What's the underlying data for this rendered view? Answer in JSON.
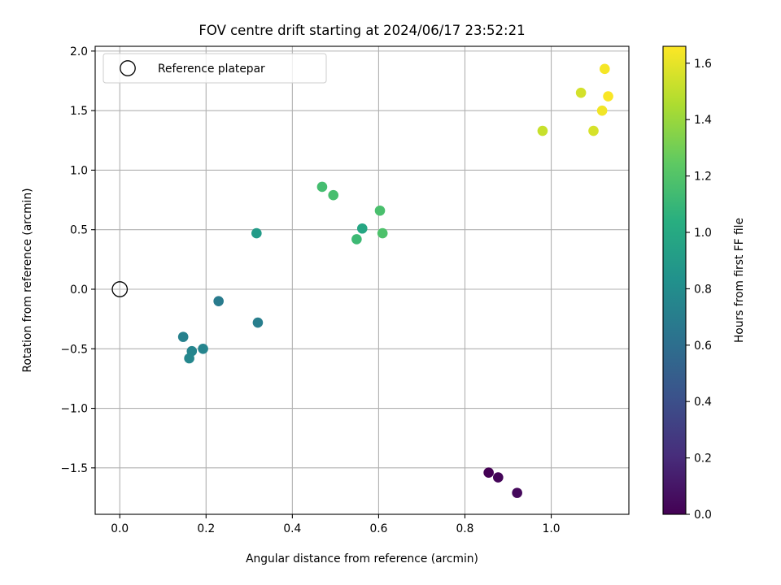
{
  "chart_data": {
    "type": "scatter",
    "title": "FOV centre drift starting at 2024/06/17 23:52:21",
    "xlabel": "Angular distance from reference (arcmin)",
    "ylabel": "Rotation from reference (arcmin)",
    "xlim": [
      -0.057,
      1.18
    ],
    "ylim": [
      -1.89,
      2.04
    ],
    "xticks": [
      0.0,
      0.2,
      0.4,
      0.6,
      0.8,
      1.0
    ],
    "xtick_labels": [
      "0.0",
      "0.2",
      "0.4",
      "0.6",
      "0.8",
      "1.0"
    ],
    "yticks": [
      -1.5,
      -1.0,
      -0.5,
      0.0,
      0.5,
      1.0,
      1.5,
      2.0
    ],
    "ytick_labels": [
      "−1.5",
      "−1.0",
      "−0.5",
      "0.0",
      "0.5",
      "1.0",
      "1.5",
      "2.0"
    ],
    "grid": true,
    "legend": {
      "position": "top-left",
      "entries": [
        "Reference platepar"
      ]
    },
    "reference_point": {
      "x": 0.0,
      "y": 0.0,
      "label": "Reference platepar"
    },
    "colorbar": {
      "label": "Hours from first FF file",
      "colormap": "viridis",
      "range": [
        0.0,
        1.66
      ],
      "ticks": [
        0.0,
        0.2,
        0.4,
        0.6,
        0.8,
        1.0,
        1.2,
        1.4,
        1.6
      ],
      "tick_labels": [
        "0.0",
        "0.2",
        "0.4",
        "0.6",
        "0.8",
        "1.0",
        "1.2",
        "1.4",
        "1.6"
      ]
    },
    "points": [
      {
        "x": 0.855,
        "y": -1.54,
        "hours": 0.0
      },
      {
        "x": 0.877,
        "y": -1.58,
        "hours": 0.02
      },
      {
        "x": 0.921,
        "y": -1.71,
        "hours": 0.04
      },
      {
        "x": 0.229,
        "y": -0.1,
        "hours": 0.68
      },
      {
        "x": 0.32,
        "y": -0.28,
        "hours": 0.7
      },
      {
        "x": 0.147,
        "y": -0.4,
        "hours": 0.72
      },
      {
        "x": 0.193,
        "y": -0.5,
        "hours": 0.74
      },
      {
        "x": 0.167,
        "y": -0.52,
        "hours": 0.75
      },
      {
        "x": 0.161,
        "y": -0.58,
        "hours": 0.76
      },
      {
        "x": 0.317,
        "y": 0.47,
        "hours": 0.9
      },
      {
        "x": 0.562,
        "y": 0.51,
        "hours": 0.98
      },
      {
        "x": 0.549,
        "y": 0.42,
        "hours": 1.12
      },
      {
        "x": 0.469,
        "y": 0.86,
        "hours": 1.15
      },
      {
        "x": 0.495,
        "y": 0.79,
        "hours": 1.16
      },
      {
        "x": 0.603,
        "y": 0.66,
        "hours": 1.17
      },
      {
        "x": 0.609,
        "y": 0.47,
        "hours": 1.18
      },
      {
        "x": 0.98,
        "y": 1.33,
        "hours": 1.52
      },
      {
        "x": 1.069,
        "y": 1.65,
        "hours": 1.55
      },
      {
        "x": 1.098,
        "y": 1.33,
        "hours": 1.56
      },
      {
        "x": 1.118,
        "y": 1.5,
        "hours": 1.63
      },
      {
        "x": 1.124,
        "y": 1.85,
        "hours": 1.64
      },
      {
        "x": 1.132,
        "y": 1.62,
        "hours": 1.65
      }
    ]
  }
}
